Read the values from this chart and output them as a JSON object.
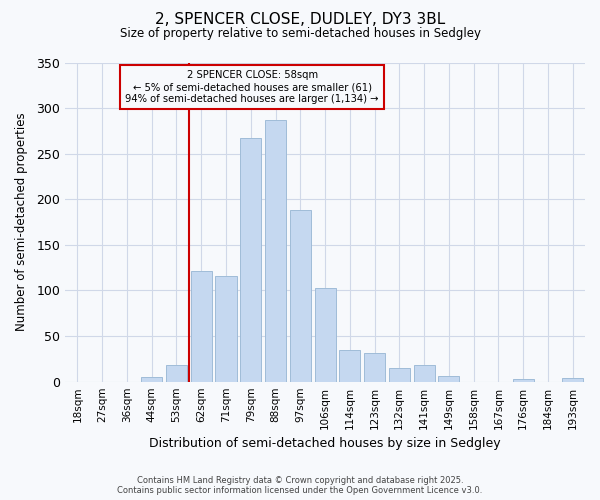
{
  "title_line1": "2, SPENCER CLOSE, DUDLEY, DY3 3BL",
  "title_line2": "Size of property relative to semi-detached houses in Sedgley",
  "xlabel": "Distribution of semi-detached houses by size in Sedgley",
  "ylabel": "Number of semi-detached properties",
  "bar_labels": [
    "18sqm",
    "27sqm",
    "36sqm",
    "44sqm",
    "53sqm",
    "62sqm",
    "71sqm",
    "79sqm",
    "88sqm",
    "97sqm",
    "106sqm",
    "114sqm",
    "123sqm",
    "132sqm",
    "141sqm",
    "149sqm",
    "158sqm",
    "167sqm",
    "176sqm",
    "184sqm",
    "193sqm"
  ],
  "bar_values": [
    0,
    0,
    0,
    5,
    18,
    121,
    116,
    267,
    287,
    188,
    103,
    35,
    31,
    15,
    18,
    6,
    0,
    0,
    3,
    0,
    4
  ],
  "bar_color": "#c5d8f0",
  "bar_edge_color": "#a0bcd8",
  "vline_x_index": 5,
  "vline_color": "#cc0000",
  "annotation_title": "2 SPENCER CLOSE: 58sqm",
  "annotation_line1": "← 5% of semi-detached houses are smaller (61)",
  "annotation_line2": "94% of semi-detached houses are larger (1,134) →",
  "annotation_box_edge": "#cc0000",
  "ylim": [
    0,
    350
  ],
  "yticks": [
    0,
    50,
    100,
    150,
    200,
    250,
    300,
    350
  ],
  "background_color": "#f7f9fc",
  "grid_color": "#d0d8e8",
  "footer_line1": "Contains HM Land Registry data © Crown copyright and database right 2025.",
  "footer_line2": "Contains public sector information licensed under the Open Government Licence v3.0."
}
